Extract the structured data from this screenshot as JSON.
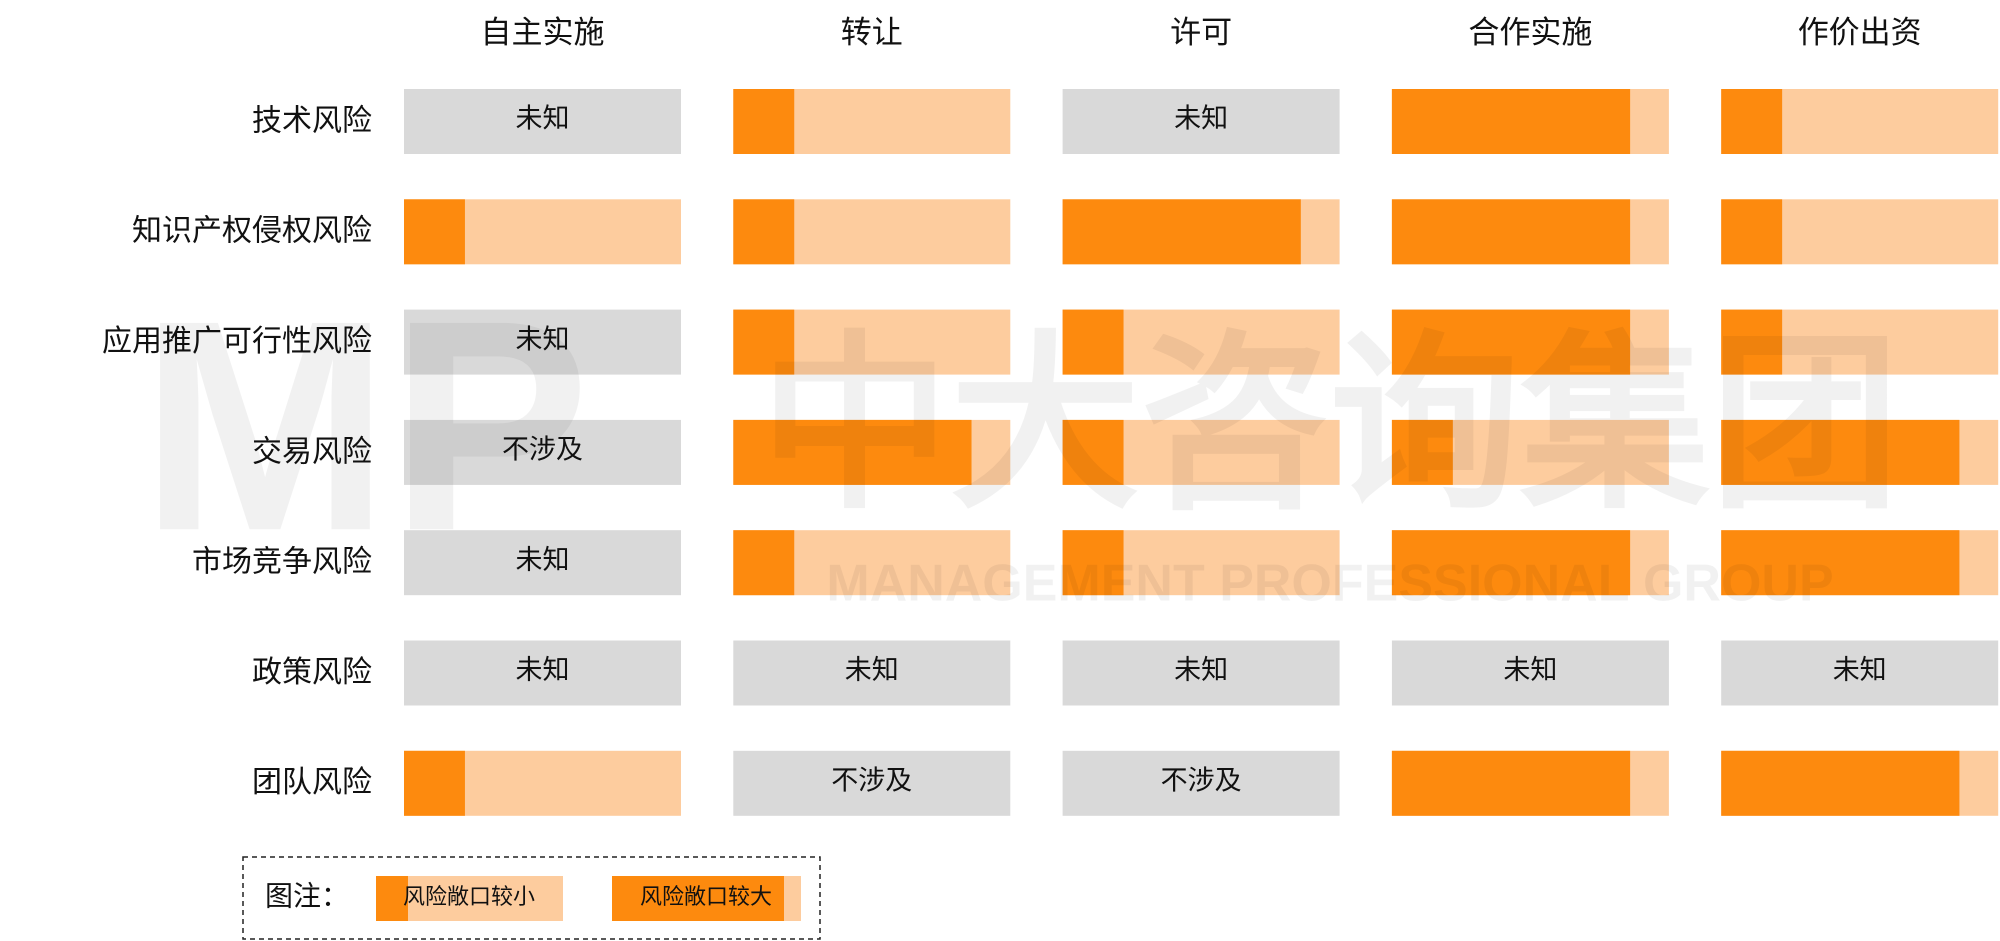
{
  "columns": [
    "自主实施",
    "转让",
    "许可",
    "合作实施",
    "作价出资"
  ],
  "rows": [
    {
      "label": "技术风险",
      "cells": [
        {
          "text": "未知"
        },
        {
          "fill": 22
        },
        {
          "text": "未知"
        },
        {
          "fill": 86
        },
        {
          "fill": 22
        }
      ]
    },
    {
      "label": "知识产权侵权风险",
      "cells": [
        {
          "fill": 22
        },
        {
          "fill": 22
        },
        {
          "fill": 86
        },
        {
          "fill": 86
        },
        {
          "fill": 22
        }
      ]
    },
    {
      "label": "应用推广可行性风险",
      "cells": [
        {
          "text": "未知"
        },
        {
          "fill": 22
        },
        {
          "fill": 22
        },
        {
          "fill": 86
        },
        {
          "fill": 22
        }
      ]
    },
    {
      "label": "交易风险",
      "cells": [
        {
          "text": "不涉及"
        },
        {
          "fill": 86
        },
        {
          "fill": 22
        },
        {
          "fill": 22
        },
        {
          "fill": 86
        }
      ]
    },
    {
      "label": "市场竞争风险",
      "cells": [
        {
          "text": "未知"
        },
        {
          "fill": 22
        },
        {
          "fill": 22
        },
        {
          "fill": 86
        },
        {
          "fill": 86
        }
      ]
    },
    {
      "label": "政策风险",
      "cells": [
        {
          "text": "未知"
        },
        {
          "text": "未知"
        },
        {
          "text": "未知"
        },
        {
          "text": "未知"
        },
        {
          "text": "未知"
        }
      ]
    },
    {
      "label": "团队风险",
      "cells": [
        {
          "fill": 22
        },
        {
          "text": "不涉及"
        },
        {
          "text": "不涉及"
        },
        {
          "fill": 86
        },
        {
          "fill": 86
        }
      ]
    }
  ],
  "legend": {
    "title": "图注：",
    "small": "风险敞口较小",
    "large": "风险敞口较大"
  },
  "watermark": {
    "logo": "MP",
    "name": "中大咨询集团",
    "subtitle": "MANAGEMENT PROFESSIONAL GROUP"
  }
}
